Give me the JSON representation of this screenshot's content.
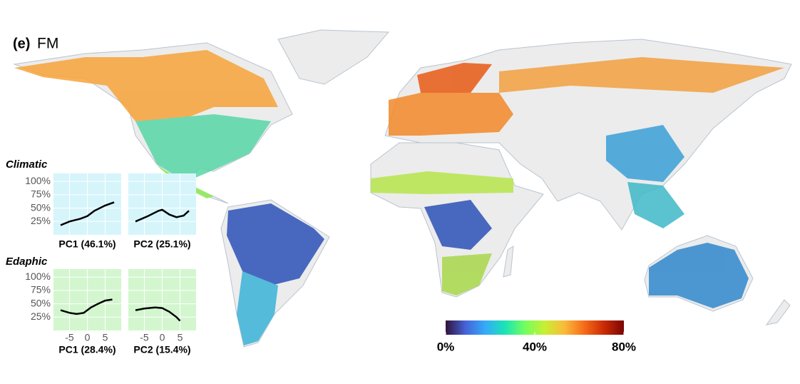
{
  "panel": {
    "label": "(e)",
    "title": "FM"
  },
  "insets": {
    "row_labels": [
      "Climatic",
      "Edaphic"
    ],
    "xlim": [
      -9.5,
      9.5
    ],
    "ylim": [
      0,
      115
    ],
    "xticks": [
      -5,
      0,
      5
    ],
    "yticks": [
      {
        "value": 100,
        "label": "100%"
      },
      {
        "value": 75,
        "label": "75%"
      },
      {
        "value": 50,
        "label": "50%"
      },
      {
        "value": 25,
        "label": "25%"
      }
    ],
    "line_color": "#000000",
    "plots": [
      {
        "xlabel": "PC1 (46.1%)",
        "background": "#d6f5fb",
        "x": [
          -7.5,
          -5,
          -2,
          0,
          2,
          5,
          7.5
        ],
        "values": [
          18,
          25,
          30,
          35,
          45,
          55,
          61
        ]
      },
      {
        "xlabel": "PC2 (25.1%)",
        "background": "#d6f5fb",
        "x": [
          -7.5,
          -4,
          -1,
          0,
          2,
          4,
          6,
          7.5
        ],
        "values": [
          25,
          35,
          45,
          47,
          38,
          33,
          36,
          45
        ]
      },
      {
        "xlabel": "PC1 (28.4%)",
        "background": "#d3f6cf",
        "x": [
          -7.5,
          -5,
          -3,
          -1,
          1,
          3,
          5,
          7
        ],
        "values": [
          38,
          33,
          31,
          33,
          43,
          50,
          56,
          58
        ]
      },
      {
        "xlabel": "PC2 (15.4%)",
        "background": "#d3f6cf",
        "x": [
          -7.5,
          -5,
          -2,
          0,
          2,
          4,
          5
        ],
        "values": [
          38,
          41,
          43,
          42,
          35,
          25,
          18
        ]
      }
    ]
  },
  "colorbar": {
    "range": [
      0,
      80
    ],
    "ticks": [
      {
        "value": 0,
        "label": "0%"
      },
      {
        "value": 40,
        "label": "40%"
      },
      {
        "value": 80,
        "label": "80%"
      }
    ],
    "colors": [
      "#30123b",
      "#4662d7",
      "#36aaf9",
      "#1ae4b6",
      "#72fe5e",
      "#c8ef34",
      "#faba39",
      "#f66b19",
      "#ca2a04",
      "#7a0403"
    ]
  }
}
